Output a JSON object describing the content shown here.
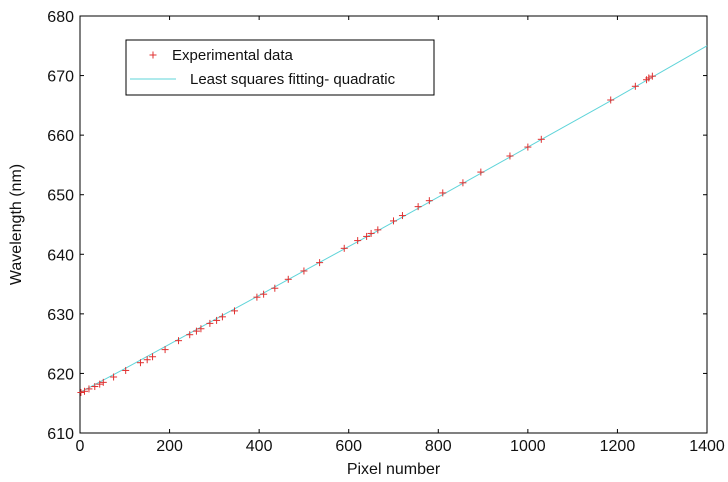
{
  "chart_data": {
    "type": "scatter",
    "title": "",
    "xlabel": "Pixel number",
    "ylabel": "Wavelength (nm)",
    "xlim": [
      0,
      1400
    ],
    "ylim": [
      610,
      680
    ],
    "xticks": [
      0,
      200,
      400,
      600,
      800,
      1000,
      1200,
      1400
    ],
    "yticks": [
      610,
      620,
      630,
      640,
      650,
      660,
      670,
      680
    ],
    "grid": false,
    "legend_position": "top-left",
    "series": [
      {
        "name": "Experimental data",
        "kind": "marker",
        "marker": "plus",
        "color": "#e03030",
        "points": [
          [
            2,
            616.8
          ],
          [
            10,
            617.0
          ],
          [
            20,
            617.4
          ],
          [
            33,
            617.8
          ],
          [
            44,
            618.2
          ],
          [
            52,
            618.5
          ],
          [
            75,
            619.4
          ],
          [
            102,
            620.5
          ],
          [
            135,
            621.8
          ],
          [
            150,
            622.3
          ],
          [
            162,
            622.8
          ],
          [
            190,
            624.0
          ],
          [
            220,
            625.5
          ],
          [
            245,
            626.5
          ],
          [
            260,
            627.1
          ],
          [
            270,
            627.5
          ],
          [
            290,
            628.4
          ],
          [
            305,
            628.9
          ],
          [
            318,
            629.5
          ],
          [
            345,
            630.5
          ],
          [
            395,
            632.8
          ],
          [
            410,
            633.3
          ],
          [
            435,
            634.3
          ],
          [
            465,
            635.8
          ],
          [
            500,
            637.2
          ],
          [
            535,
            638.6
          ],
          [
            590,
            641.0
          ],
          [
            620,
            642.3
          ],
          [
            640,
            643.0
          ],
          [
            650,
            643.5
          ],
          [
            665,
            644.1
          ],
          [
            700,
            645.6
          ],
          [
            720,
            646.5
          ],
          [
            755,
            648.0
          ],
          [
            780,
            649.0
          ],
          [
            810,
            650.3
          ],
          [
            855,
            652.0
          ],
          [
            895,
            653.8
          ],
          [
            960,
            656.5
          ],
          [
            1000,
            658.0
          ],
          [
            1030,
            659.3
          ],
          [
            1185,
            665.9
          ],
          [
            1240,
            668.2
          ],
          [
            1265,
            669.3
          ],
          [
            1270,
            669.6
          ],
          [
            1278,
            669.9
          ]
        ]
      },
      {
        "name": "Least squares fitting- quadratic",
        "kind": "line",
        "color": "#5fd4d9",
        "x": [
          0,
          100,
          200,
          300,
          400,
          500,
          600,
          700,
          800,
          900,
          1000,
          1100,
          1200,
          1300,
          1400
        ],
        "y": [
          616.8,
          620.8,
          624.9,
          629.0,
          633.1,
          637.2,
          641.3,
          645.4,
          649.6,
          653.8,
          658.0,
          662.2,
          666.4,
          670.7,
          675.0
        ]
      }
    ]
  }
}
